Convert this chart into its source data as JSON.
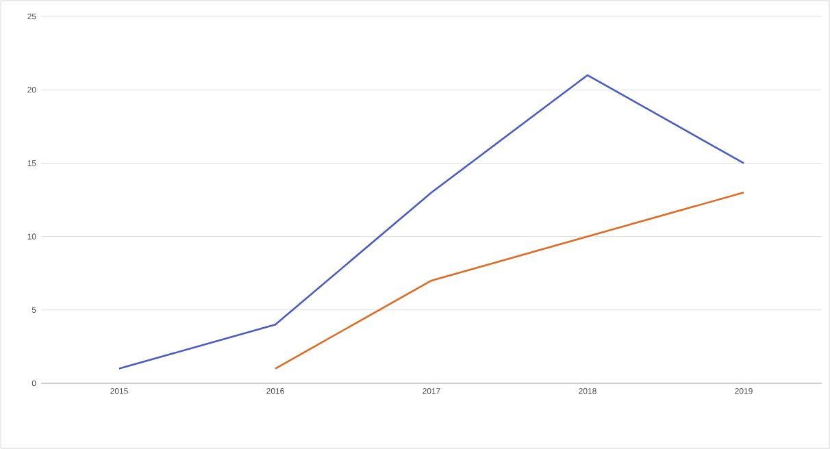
{
  "chart_data": {
    "type": "line",
    "categories": [
      "2015",
      "2016",
      "2017",
      "2018",
      "2019"
    ],
    "series": [
      {
        "color": "#4a5bc4",
        "values": [
          1,
          4,
          13,
          21,
          15
        ]
      },
      {
        "color": "#e06a22",
        "values": [
          null,
          1,
          7,
          10,
          13
        ]
      }
    ],
    "ylim": [
      0,
      25
    ],
    "yticks": [
      0,
      5,
      10,
      15,
      20,
      25
    ],
    "grid": "y",
    "marker": "none",
    "line_style": "solid"
  }
}
